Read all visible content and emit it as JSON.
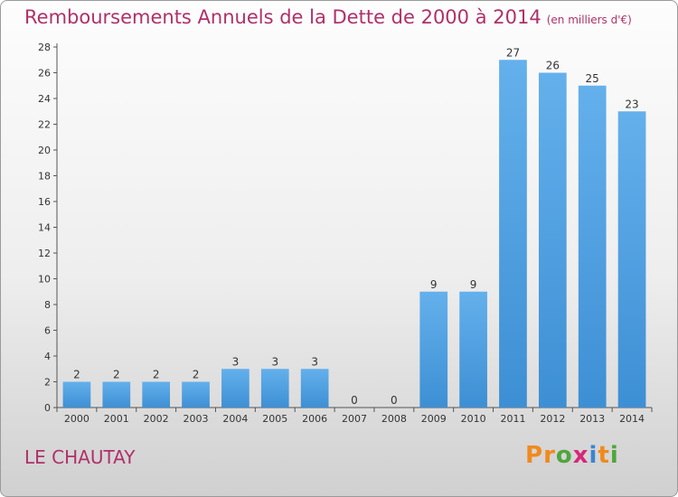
{
  "chart_data": {
    "type": "bar",
    "title": "Remboursements Annuels de la Dette de 2000 à 2014",
    "subtitle": "(en milliers d'€)",
    "categories": [
      "2000",
      "2001",
      "2002",
      "2003",
      "2004",
      "2005",
      "2006",
      "2007",
      "2008",
      "2009",
      "2010",
      "2011",
      "2012",
      "2013",
      "2014"
    ],
    "values": [
      2,
      2,
      2,
      2,
      3,
      3,
      3,
      0,
      0,
      9,
      9,
      27,
      26,
      25,
      23
    ],
    "ylim": [
      0,
      28
    ],
    "yticks": [
      0,
      2,
      4,
      6,
      8,
      10,
      12,
      14,
      16,
      18,
      20,
      22,
      24,
      26,
      28
    ],
    "grid": false,
    "bar_color": "#3d8fd4",
    "bar_highlight_color": "#64b0ec"
  },
  "location": "LE CHAUTAY",
  "logo": {
    "text": "Proxiti",
    "letters": [
      {
        "char": "P",
        "color": "#f08a1c"
      },
      {
        "char": "r",
        "color": "#f08a1c"
      },
      {
        "char": "o",
        "color": "#4fa63c"
      },
      {
        "char": "x",
        "color": "#d6287a"
      },
      {
        "char": "i",
        "color": "#3a86d0"
      },
      {
        "char": "t",
        "color": "#f08a1c"
      },
      {
        "char": "i",
        "color": "#4fa63c"
      }
    ]
  },
  "colors": {
    "title": "#b0306a",
    "axis": "#555555",
    "label": "#333333"
  }
}
